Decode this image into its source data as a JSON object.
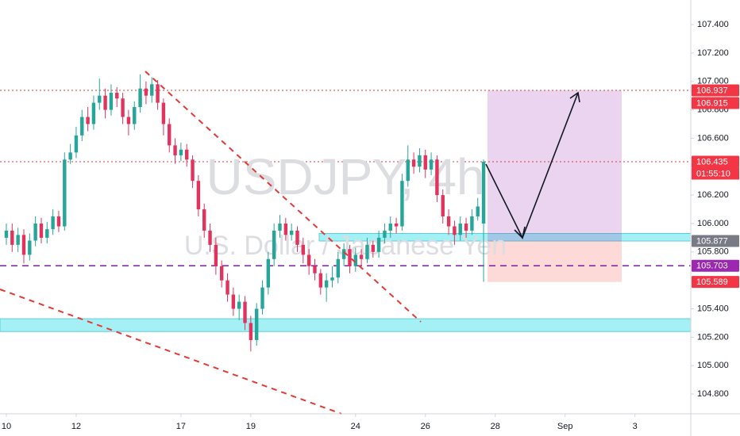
{
  "chart_data": {
    "type": "candlestick",
    "watermark": "USDJPY, 4h",
    "watermark_subtitle": "U.S. Dollar / Japanese Yen",
    "up_color": "#26a69a",
    "down_color": "#e0345f",
    "open": [
      105.9,
      105.95,
      105.85,
      105.92,
      105.78,
      105.88,
      106.0,
      105.9,
      105.96,
      106.05,
      105.98,
      106.45,
      106.5,
      106.62,
      106.75,
      106.7,
      106.85,
      106.9,
      106.8,
      106.92,
      106.88,
      106.75,
      106.7,
      106.82,
      106.95,
      106.9,
      106.98,
      106.85,
      106.7,
      106.55,
      106.48,
      106.52,
      106.45,
      106.3,
      106.1,
      105.95,
      105.85,
      105.7,
      105.6,
      105.5,
      105.4,
      105.45,
      105.3,
      105.18,
      105.4,
      105.55,
      105.75,
      105.95,
      106.0,
      105.92,
      105.95,
      105.85,
      105.78,
      105.7,
      105.65,
      105.55,
      105.6,
      105.62,
      105.75,
      105.82,
      105.7,
      105.78,
      105.75,
      105.85,
      105.8,
      105.9,
      105.95,
      106.0,
      105.98,
      106.3,
      106.45,
      106.4,
      106.48,
      106.38,
      106.45,
      106.2,
      106.05,
      105.98,
      105.92,
      106.0,
      105.95,
      106.05,
      106.0
    ],
    "high": [
      106.0,
      106.0,
      105.97,
      105.96,
      105.93,
      106.05,
      106.04,
      106.01,
      106.1,
      106.09,
      106.5,
      106.56,
      106.68,
      106.8,
      106.82,
      106.9,
      107.02,
      106.95,
      106.98,
      106.96,
      106.92,
      106.8,
      106.86,
      107.05,
      107.0,
      107.03,
      107.01,
      106.88,
      106.74,
      106.6,
      106.57,
      106.56,
      106.48,
      106.34,
      106.14,
      106.0,
      105.9,
      105.74,
      105.65,
      105.55,
      105.5,
      105.49,
      105.35,
      105.44,
      105.6,
      105.8,
      106.0,
      106.06,
      106.04,
      106.0,
      105.98,
      105.9,
      105.82,
      105.75,
      105.68,
      105.65,
      105.7,
      105.8,
      105.86,
      105.85,
      105.83,
      105.82,
      105.9,
      105.88,
      105.95,
      106.0,
      106.05,
      106.04,
      106.35,
      106.55,
      106.5,
      106.53,
      106.52,
      106.5,
      106.48,
      106.24,
      106.1,
      106.02,
      106.05,
      106.04,
      106.1,
      106.18,
      106.45
    ],
    "low": [
      105.85,
      105.8,
      105.8,
      105.72,
      105.74,
      105.84,
      105.86,
      105.86,
      105.92,
      105.94,
      105.95,
      106.42,
      106.46,
      106.58,
      106.65,
      106.66,
      106.8,
      106.74,
      106.76,
      106.82,
      106.7,
      106.62,
      106.66,
      106.78,
      106.84,
      106.85,
      106.8,
      106.62,
      106.5,
      106.42,
      106.44,
      106.4,
      106.25,
      106.05,
      105.9,
      105.8,
      105.64,
      105.55,
      105.45,
      105.35,
      105.32,
      105.25,
      105.1,
      105.14,
      105.36,
      105.5,
      105.7,
      105.9,
      105.88,
      105.88,
      105.8,
      105.72,
      105.64,
      105.6,
      105.5,
      105.45,
      105.55,
      105.58,
      105.7,
      105.65,
      105.66,
      105.7,
      105.72,
      105.76,
      105.76,
      105.86,
      105.9,
      105.93,
      105.95,
      106.26,
      106.35,
      106.36,
      106.32,
      106.34,
      106.15,
      106.0,
      105.92,
      105.85,
      105.88,
      105.9,
      105.92,
      106.02,
      105.589
    ],
    "close": [
      105.95,
      105.85,
      105.92,
      105.78,
      105.88,
      106.0,
      105.9,
      105.96,
      106.05,
      105.98,
      106.45,
      106.5,
      106.62,
      106.75,
      106.7,
      106.85,
      106.9,
      106.8,
      106.92,
      106.88,
      106.75,
      106.7,
      106.82,
      106.95,
      106.9,
      106.98,
      106.85,
      106.7,
      106.55,
      106.48,
      106.52,
      106.45,
      106.3,
      106.1,
      105.95,
      105.85,
      105.7,
      105.6,
      105.5,
      105.4,
      105.45,
      105.3,
      105.18,
      105.4,
      105.55,
      105.75,
      105.95,
      106.0,
      105.92,
      105.95,
      105.85,
      105.78,
      105.7,
      105.65,
      105.55,
      105.6,
      105.62,
      105.75,
      105.82,
      105.7,
      105.78,
      105.75,
      105.85,
      105.8,
      105.9,
      105.95,
      106.0,
      105.98,
      106.3,
      106.45,
      106.4,
      106.48,
      106.38,
      106.45,
      106.2,
      106.05,
      105.98,
      105.92,
      106.0,
      105.95,
      106.05,
      106.12,
      106.435
    ],
    "xlim": [
      -1.09,
      117.6
    ],
    "xticks": [
      {
        "value": 0,
        "label": "10"
      },
      {
        "value": 12,
        "label": "12"
      },
      {
        "value": 30,
        "label": "17"
      },
      {
        "value": 42,
        "label": "19"
      },
      {
        "value": 60,
        "label": "24"
      },
      {
        "value": 72,
        "label": "26"
      },
      {
        "value": 84,
        "label": "28"
      },
      {
        "value": 96,
        "label": "Sep"
      },
      {
        "value": 108,
        "label": "3"
      }
    ],
    "ylim": [
      104.661,
      107.573
    ],
    "yticks": [
      {
        "value": 104.8,
        "label": "104.800"
      },
      {
        "value": 105.0,
        "label": "105.000"
      },
      {
        "value": 105.2,
        "label": "105.200"
      },
      {
        "value": 105.4,
        "label": "105.400"
      },
      {
        "value": 105.6,
        "label": "105.600"
      },
      {
        "value": 105.8,
        "label": "105.800"
      },
      {
        "value": 106.0,
        "label": "106.000"
      },
      {
        "value": 106.2,
        "label": "106.200"
      },
      {
        "value": 106.4,
        "label": "106.400"
      },
      {
        "value": 106.6,
        "label": "106.600"
      },
      {
        "value": 106.8,
        "label": "106.800"
      },
      {
        "value": 107.0,
        "label": "107.000"
      },
      {
        "value": 107.2,
        "label": "107.200"
      },
      {
        "value": 107.4,
        "label": "107.400"
      }
    ],
    "levels": [
      {
        "value": 106.937,
        "color": "#e53935",
        "style": "dotted"
      },
      {
        "value": 106.435,
        "color": "#e53935",
        "style": "dotted"
      },
      {
        "value": 105.703,
        "color": "#7b1fa2",
        "style": "dashed"
      }
    ],
    "zones": [
      {
        "low": 105.877,
        "high": 105.93,
        "color": "#a5f0f5"
      },
      {
        "low": 105.24,
        "high": 105.33,
        "color": "#a5f0f5"
      }
    ],
    "position": {
      "target": 106.937,
      "entry": 105.877,
      "stop": 105.589
    },
    "price_labels": [
      {
        "value": 106.937,
        "color": "#f23645"
      },
      {
        "value": 106.915,
        "color": "#f23645"
      },
      {
        "value": 106.435,
        "color": "#f23645"
      },
      {
        "value": 105.877,
        "color": "#787b86"
      },
      {
        "value": 105.703,
        "color": "#9c27b0"
      },
      {
        "value": 105.589,
        "color": "#f23645"
      }
    ],
    "countdown": "01:55:10"
  }
}
